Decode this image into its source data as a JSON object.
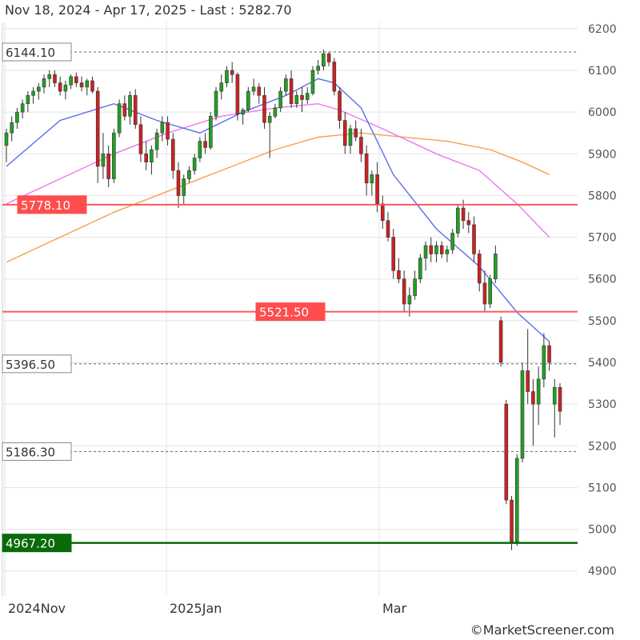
{
  "header": {
    "title": "Nov 18, 2024 - Apr 17, 2025 - Last : 5282.70",
    "credit": "©MarketScreener.com"
  },
  "chart_data": {
    "type": "candlestick",
    "x_tick_labels": [
      "2024Nov",
      "2025Jan",
      "Mar"
    ],
    "y_tick_labels": [
      "4900",
      "5000",
      "5100",
      "5200",
      "5300",
      "5400",
      "5500",
      "5600",
      "5700",
      "5800",
      "5900",
      "6000",
      "6100",
      "6200"
    ],
    "ylim": [
      4840,
      6215
    ],
    "grid": true,
    "colors": {
      "up": "#22a022",
      "down": "#cc2222",
      "ma20": "#5b6ee8",
      "ma50": "#ee77ee",
      "ma100": "#f3a04e"
    },
    "levels": [
      {
        "label": "6144.10",
        "value": 6144.1,
        "style": "dashed",
        "color": "#666666"
      },
      {
        "label": "5778.10",
        "value": 5778.1,
        "style": "solid",
        "color": "#ff5a5a"
      },
      {
        "label": "5521.50",
        "value": 5521.5,
        "style": "solid",
        "color": "#ff5a5a"
      },
      {
        "label": "5396.50",
        "value": 5396.5,
        "style": "dashed",
        "color": "#666666"
      },
      {
        "label": "5186.30",
        "value": 5186.3,
        "style": "dashed",
        "color": "#666666"
      },
      {
        "label": "4967.20",
        "value": 4967.2,
        "style": "solid",
        "color": "#0a6a0a"
      }
    ],
    "candles": [
      [
        5920,
        5960,
        5880,
        5950
      ],
      [
        5950,
        5990,
        5930,
        5975
      ],
      [
        5975,
        6010,
        5960,
        6000
      ],
      [
        6000,
        6030,
        5985,
        6020
      ],
      [
        6020,
        6050,
        6000,
        6040
      ],
      [
        6040,
        6060,
        6020,
        6050
      ],
      [
        6050,
        6070,
        6030,
        6060
      ],
      [
        6060,
        6090,
        6045,
        6080
      ],
      [
        6080,
        6100,
        6060,
        6090
      ],
      [
        6090,
        6100,
        6060,
        6070
      ],
      [
        6070,
        6085,
        6040,
        6050
      ],
      [
        6050,
        6075,
        6030,
        6065
      ],
      [
        6065,
        6090,
        6055,
        6085
      ],
      [
        6085,
        6095,
        6060,
        6070
      ],
      [
        6070,
        6085,
        6050,
        6060
      ],
      [
        6060,
        6080,
        6040,
        6075
      ],
      [
        6075,
        6085,
        6045,
        6050
      ],
      [
        6050,
        6060,
        5830,
        5870
      ],
      [
        5870,
        5950,
        5840,
        5900
      ],
      [
        5900,
        5920,
        5820,
        5840
      ],
      [
        5840,
        5960,
        5830,
        5950
      ],
      [
        5950,
        6030,
        5940,
        6020
      ],
      [
        6020,
        6040,
        5980,
        5990
      ],
      [
        5990,
        6050,
        5970,
        6040
      ],
      [
        6040,
        6055,
        5960,
        5970
      ],
      [
        5970,
        5990,
        5880,
        5900
      ],
      [
        5900,
        5930,
        5860,
        5880
      ],
      [
        5880,
        5920,
        5850,
        5910
      ],
      [
        5910,
        5960,
        5890,
        5950
      ],
      [
        5950,
        5990,
        5930,
        5975
      ],
      [
        5975,
        5990,
        5920,
        5935
      ],
      [
        5935,
        5950,
        5840,
        5860
      ],
      [
        5860,
        5880,
        5770,
        5800
      ],
      [
        5800,
        5850,
        5780,
        5840
      ],
      [
        5840,
        5870,
        5830,
        5860
      ],
      [
        5860,
        5900,
        5850,
        5890
      ],
      [
        5890,
        5940,
        5880,
        5930
      ],
      [
        5930,
        5950,
        5900,
        5915
      ],
      [
        5915,
        6000,
        5910,
        5990
      ],
      [
        5990,
        6060,
        5980,
        6050
      ],
      [
        6050,
        6090,
        6030,
        6070
      ],
      [
        6070,
        6110,
        6060,
        6100
      ],
      [
        6100,
        6120,
        6070,
        6090
      ],
      [
        6090,
        6095,
        5980,
        5995
      ],
      [
        5995,
        6010,
        5970,
        6005
      ],
      [
        6005,
        6060,
        6000,
        6050
      ],
      [
        6050,
        6080,
        6040,
        6060
      ],
      [
        6060,
        6070,
        6020,
        6040
      ],
      [
        6040,
        6060,
        5960,
        5975
      ],
      [
        5975,
        6000,
        5890,
        5990
      ],
      [
        5990,
        6020,
        5985,
        6010
      ],
      [
        6010,
        6060,
        6000,
        6050
      ],
      [
        6050,
        6090,
        6040,
        6080
      ],
      [
        6080,
        6100,
        6010,
        6020
      ],
      [
        6020,
        6050,
        6010,
        6040
      ],
      [
        6040,
        6060,
        6000,
        6030
      ],
      [
        6030,
        6060,
        6020,
        6045
      ],
      [
        6045,
        6110,
        6040,
        6100
      ],
      [
        6100,
        6125,
        6090,
        6110
      ],
      [
        6110,
        6150,
        6100,
        6140
      ],
      [
        6140,
        6145,
        6110,
        6120
      ],
      [
        6120,
        6130,
        6040,
        6050
      ],
      [
        6050,
        6060,
        5960,
        5980
      ],
      [
        5980,
        6000,
        5900,
        5920
      ],
      [
        5920,
        5970,
        5900,
        5960
      ],
      [
        5960,
        5980,
        5930,
        5940
      ],
      [
        5940,
        5960,
        5880,
        5900
      ],
      [
        5900,
        5920,
        5800,
        5830
      ],
      [
        5830,
        5860,
        5800,
        5850
      ],
      [
        5850,
        5880,
        5760,
        5780
      ],
      [
        5780,
        5800,
        5720,
        5740
      ],
      [
        5740,
        5760,
        5690,
        5700
      ],
      [
        5700,
        5720,
        5600,
        5620
      ],
      [
        5620,
        5650,
        5590,
        5600
      ],
      [
        5600,
        5620,
        5520,
        5540
      ],
      [
        5540,
        5580,
        5510,
        5560
      ],
      [
        5560,
        5620,
        5550,
        5600
      ],
      [
        5600,
        5660,
        5590,
        5650
      ],
      [
        5650,
        5690,
        5620,
        5680
      ],
      [
        5680,
        5700,
        5640,
        5660
      ],
      [
        5660,
        5690,
        5640,
        5680
      ],
      [
        5680,
        5690,
        5650,
        5660
      ],
      [
        5660,
        5680,
        5640,
        5670
      ],
      [
        5670,
        5720,
        5660,
        5710
      ],
      [
        5710,
        5780,
        5700,
        5770
      ],
      [
        5770,
        5790,
        5720,
        5740
      ],
      [
        5740,
        5760,
        5710,
        5730
      ],
      [
        5730,
        5750,
        5640,
        5660
      ],
      [
        5660,
        5670,
        5570,
        5590
      ],
      [
        5590,
        5620,
        5520,
        5540
      ],
      [
        5540,
        5610,
        5530,
        5600
      ],
      [
        5600,
        5680,
        5590,
        5660
      ],
      [
        5500,
        5510,
        5390,
        5400
      ],
      [
        5300,
        5310,
        5060,
        5070
      ],
      [
        5070,
        5080,
        4950,
        4970
      ],
      [
        4970,
        5180,
        4960,
        5170
      ],
      [
        5170,
        5400,
        5160,
        5380
      ],
      [
        5380,
        5480,
        5300,
        5330
      ],
      [
        5330,
        5360,
        5200,
        5300
      ],
      [
        5300,
        5390,
        5250,
        5360
      ],
      [
        5360,
        5470,
        5340,
        5440
      ],
      [
        5440,
        5450,
        5380,
        5400
      ],
      [
        5300,
        5360,
        5220,
        5340
      ],
      [
        5340,
        5350,
        5250,
        5282.7
      ]
    ],
    "ma20": [
      [
        0,
        5870
      ],
      [
        10,
        5980
      ],
      [
        20,
        6020
      ],
      [
        28,
        5980
      ],
      [
        36,
        5950
      ],
      [
        44,
        6000
      ],
      [
        52,
        6040
      ],
      [
        58,
        6080
      ],
      [
        61,
        6070
      ],
      [
        66,
        6010
      ],
      [
        72,
        5850
      ],
      [
        80,
        5720
      ],
      [
        88,
        5630
      ],
      [
        95,
        5520
      ],
      [
        101,
        5450
      ]
    ],
    "ma50": [
      [
        0,
        5780
      ],
      [
        10,
        5840
      ],
      [
        20,
        5900
      ],
      [
        30,
        5950
      ],
      [
        40,
        5990
      ],
      [
        50,
        6010
      ],
      [
        58,
        6020
      ],
      [
        62,
        6005
      ],
      [
        70,
        5960
      ],
      [
        80,
        5900
      ],
      [
        88,
        5860
      ],
      [
        95,
        5780
      ],
      [
        101,
        5700
      ]
    ],
    "ma100": [
      [
        0,
        5640
      ],
      [
        10,
        5700
      ],
      [
        20,
        5760
      ],
      [
        30,
        5810
      ],
      [
        40,
        5860
      ],
      [
        50,
        5910
      ],
      [
        58,
        5940
      ],
      [
        66,
        5950
      ],
      [
        74,
        5940
      ],
      [
        82,
        5930
      ],
      [
        90,
        5910
      ],
      [
        96,
        5880
      ],
      [
        101,
        5850
      ]
    ]
  }
}
